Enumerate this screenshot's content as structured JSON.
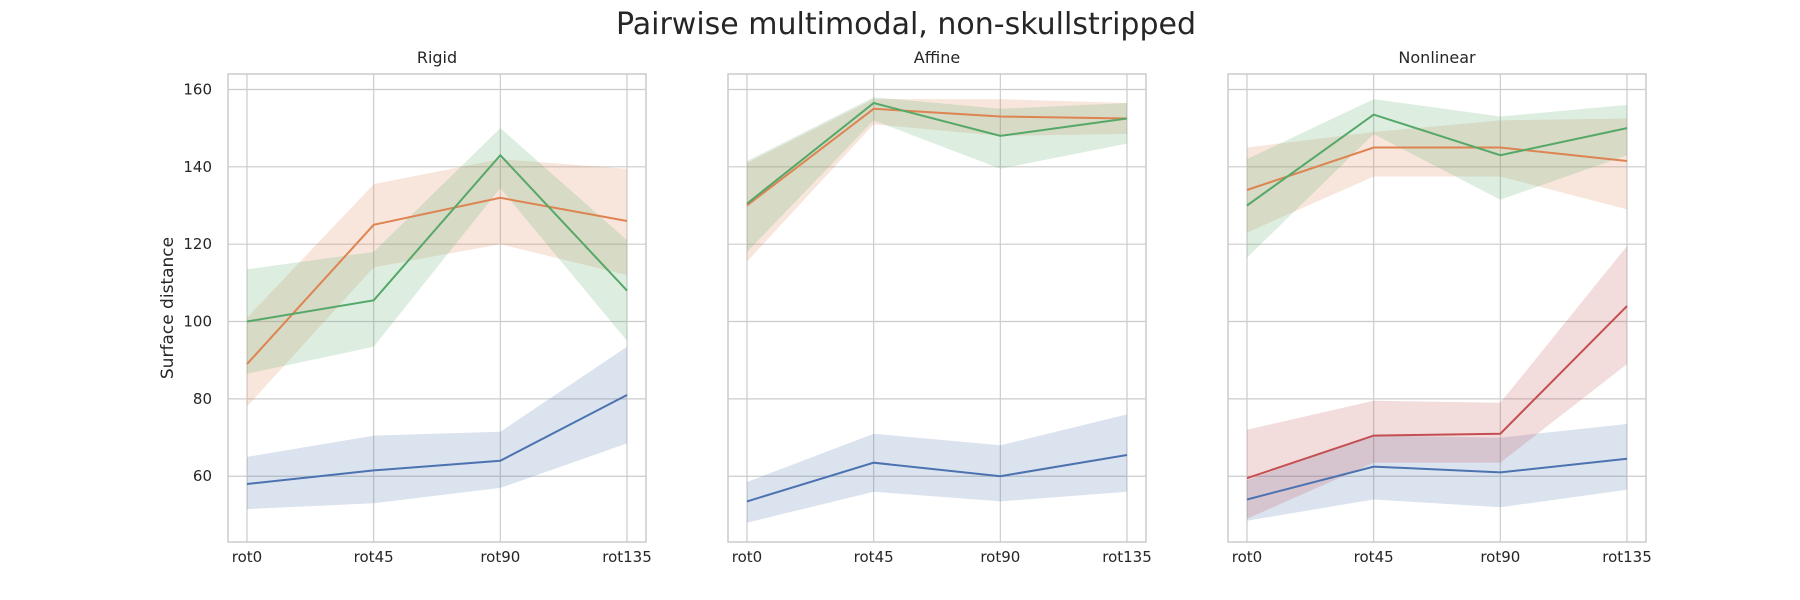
{
  "figure": {
    "title": "Pairwise multimodal, non-skullstripped"
  },
  "chart_data": [
    {
      "type": "line",
      "title": "Rigid",
      "xlabel": "",
      "ylabel": "Surface distance",
      "categories": [
        "rot0",
        "rot45",
        "rot90",
        "rot135"
      ],
      "ylim": [
        43,
        164
      ],
      "yticks": [
        60,
        80,
        100,
        120,
        140,
        160
      ],
      "grid": true,
      "series": [
        {
          "color": "#4c72b0",
          "values": [
            58,
            61.5,
            64,
            81
          ],
          "lower": [
            51.5,
            53,
            57,
            68.5
          ],
          "upper": [
            65,
            70.5,
            71.5,
            93.5
          ]
        },
        {
          "color": "#dd8452",
          "values": [
            89,
            125,
            132,
            126
          ],
          "lower": [
            78,
            114,
            120,
            112
          ],
          "upper": [
            101,
            135.5,
            142,
            139.5
          ]
        },
        {
          "color": "#55a868",
          "values": [
            100,
            105.5,
            143,
            108
          ],
          "lower": [
            86.5,
            93.5,
            134.5,
            95
          ],
          "upper": [
            113.5,
            118,
            150,
            121
          ]
        }
      ]
    },
    {
      "type": "line",
      "title": "Affine",
      "xlabel": "",
      "ylabel": "",
      "categories": [
        "rot0",
        "rot45",
        "rot90",
        "rot135"
      ],
      "ylim": [
        43,
        164
      ],
      "yticks": [
        60,
        80,
        100,
        120,
        140,
        160
      ],
      "grid": true,
      "series": [
        {
          "color": "#4c72b0",
          "values": [
            53.5,
            63.5,
            60,
            65.5
          ],
          "lower": [
            48,
            56,
            53.5,
            56
          ],
          "upper": [
            58.5,
            71,
            68,
            76
          ]
        },
        {
          "color": "#dd8452",
          "values": [
            130,
            155,
            153,
            152.5
          ],
          "lower": [
            115.5,
            151,
            148,
            148.5
          ],
          "upper": [
            141,
            157.5,
            157.5,
            156.5
          ]
        },
        {
          "color": "#55a868",
          "values": [
            130.5,
            156.5,
            148,
            152.5
          ],
          "lower": [
            118,
            152,
            139.5,
            146
          ],
          "upper": [
            141.5,
            158,
            155,
            156.5
          ]
        }
      ]
    },
    {
      "type": "line",
      "title": "Nonlinear",
      "xlabel": "",
      "ylabel": "",
      "categories": [
        "rot0",
        "rot45",
        "rot90",
        "rot135"
      ],
      "ylim": [
        43,
        164
      ],
      "yticks": [
        60,
        80,
        100,
        120,
        140,
        160
      ],
      "grid": true,
      "series": [
        {
          "color": "#4c72b0",
          "values": [
            54,
            62.5,
            61,
            64.5
          ],
          "lower": [
            48.5,
            54,
            52,
            56.5
          ],
          "upper": [
            59,
            70.5,
            70,
            73.5
          ]
        },
        {
          "color": "#dd8452",
          "values": [
            134,
            145,
            145,
            141.5
          ],
          "lower": [
            123,
            137.5,
            137.5,
            129
          ],
          "upper": [
            145,
            149,
            152,
            152.5
          ]
        },
        {
          "color": "#55a868",
          "values": [
            130,
            153.5,
            143,
            150
          ],
          "lower": [
            116.5,
            148.5,
            131.5,
            143
          ],
          "upper": [
            142,
            157.5,
            153,
            156
          ]
        },
        {
          "color": "#c44e52",
          "values": [
            59.5,
            70.5,
            71,
            104
          ],
          "lower": [
            49,
            63.5,
            63.5,
            89
          ],
          "upper": [
            72,
            79.5,
            79,
            119.5
          ]
        }
      ]
    }
  ]
}
